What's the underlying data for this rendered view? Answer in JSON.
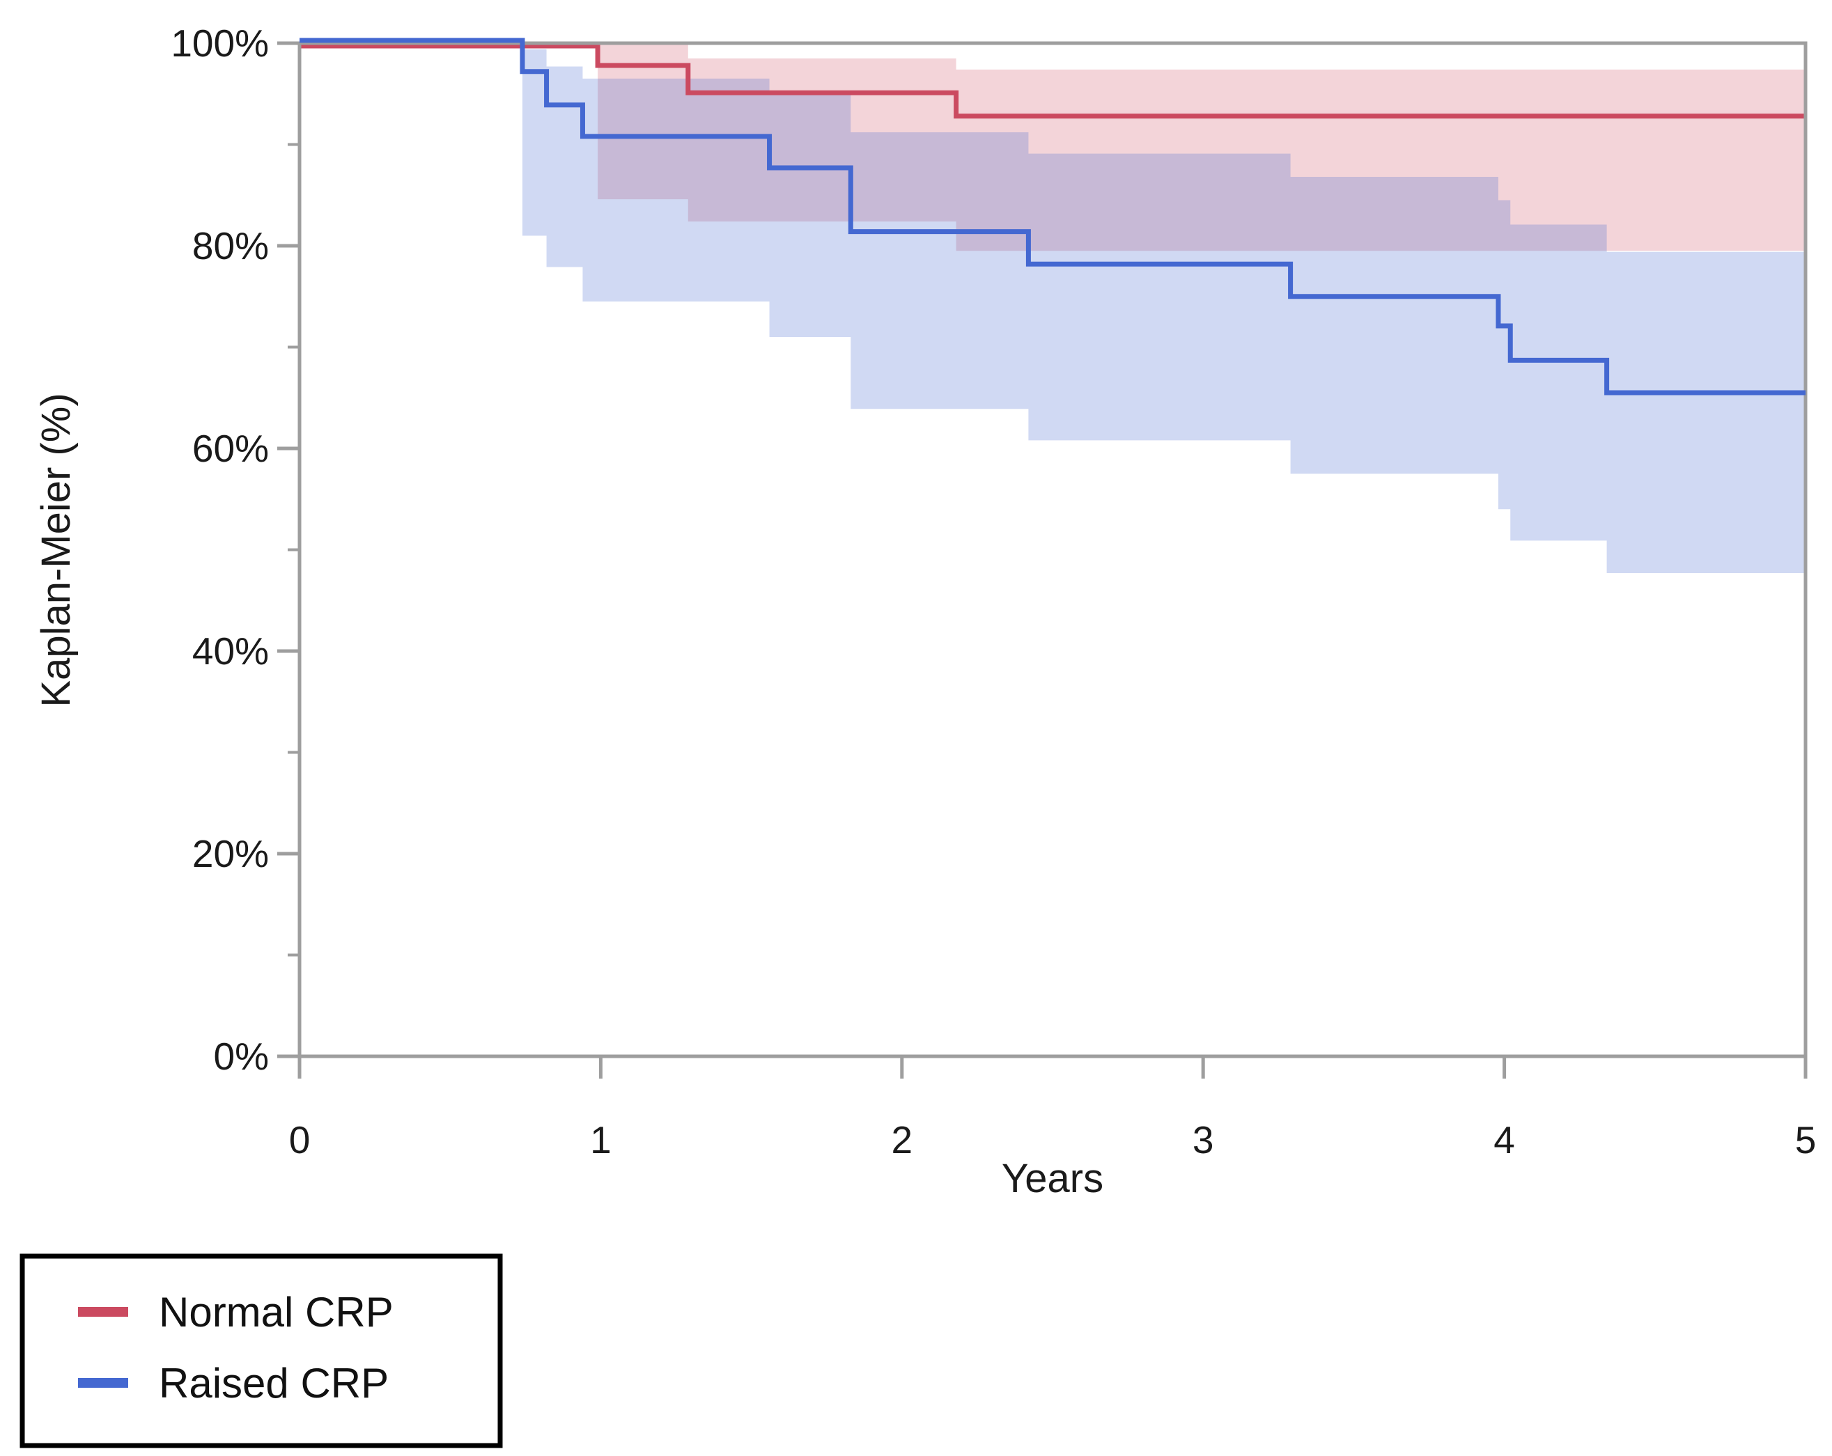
{
  "chart_data": {
    "type": "line",
    "subtype": "kaplan-meier-step-with-ci-bands",
    "title": "",
    "xlabel": "Years",
    "ylabel": "Kaplan-Meier (%)",
    "xlim": [
      0,
      5
    ],
    "ylim": [
      0,
      100
    ],
    "grid": false,
    "frame_color": "#9E9E9E",
    "text_color": "#1a1a1a",
    "legend_position": "bottom-left-outside",
    "x_ticks": [
      {
        "label": "0",
        "value": 0
      },
      {
        "label": "1",
        "value": 1
      },
      {
        "label": "2",
        "value": 2
      },
      {
        "label": "3",
        "value": 3
      },
      {
        "label": "4",
        "value": 4
      },
      {
        "label": "5",
        "value": 5
      }
    ],
    "y_major_ticks": [
      {
        "label": "100%",
        "value": 100
      },
      {
        "label": "80%",
        "value": 80
      },
      {
        "label": "60%",
        "value": 60
      },
      {
        "label": "40%",
        "value": 40
      },
      {
        "label": "20%",
        "value": 20
      },
      {
        "label": "0%",
        "value": 0
      }
    ],
    "y_minor_tick_values": [
      90,
      70,
      50,
      30,
      10
    ],
    "series": [
      {
        "name": "Normal CRP",
        "color": "#CB4A60",
        "band_opacity": 0.24,
        "survival_steps_pct": [
          [
            0,
            100
          ],
          [
            0.99,
            97.8
          ],
          [
            1.29,
            95.1
          ],
          [
            2.18,
            92.8
          ],
          [
            5,
            92.8
          ]
        ],
        "ci_upper_pct": [
          [
            0.99,
            99.9
          ],
          [
            1.29,
            98.5
          ],
          [
            2.18,
            97.4
          ],
          [
            5,
            97.4
          ]
        ],
        "ci_lower_pct": [
          [
            0.99,
            84.6
          ],
          [
            1.29,
            82.4
          ],
          [
            2.18,
            79.5
          ],
          [
            5,
            79.5
          ]
        ]
      },
      {
        "name": "Raised CRP",
        "color": "#4468D1",
        "band_opacity": 0.25,
        "survival_steps_pct": [
          [
            0,
            100
          ],
          [
            0.74,
            97.2
          ],
          [
            0.82,
            93.9
          ],
          [
            0.94,
            90.8
          ],
          [
            1.56,
            87.7
          ],
          [
            1.83,
            81.4
          ],
          [
            2.42,
            78.2
          ],
          [
            3.29,
            75.0
          ],
          [
            3.98,
            72.1
          ],
          [
            4.02,
            68.7
          ],
          [
            4.34,
            65.5
          ],
          [
            5,
            65.5
          ]
        ],
        "ci_upper_pct": [
          [
            0.74,
            99.4
          ],
          [
            0.82,
            97.7
          ],
          [
            0.94,
            96.5
          ],
          [
            1.56,
            95.0
          ],
          [
            1.83,
            91.2
          ],
          [
            2.42,
            89.1
          ],
          [
            3.29,
            86.8
          ],
          [
            3.98,
            84.5
          ],
          [
            4.02,
            82.1
          ],
          [
            4.34,
            79.4
          ],
          [
            5,
            79.4
          ]
        ],
        "ci_lower_pct": [
          [
            0.74,
            81.0
          ],
          [
            0.82,
            77.9
          ],
          [
            0.94,
            74.5
          ],
          [
            1.56,
            71.0
          ],
          [
            1.83,
            63.9
          ],
          [
            2.42,
            60.8
          ],
          [
            3.29,
            57.5
          ],
          [
            3.98,
            54.0
          ],
          [
            4.02,
            50.9
          ],
          [
            4.34,
            47.7
          ],
          [
            5,
            47.7
          ]
        ]
      }
    ]
  },
  "legend": {
    "border_color": "#000000",
    "entries": [
      "Normal CRP",
      "Raised CRP"
    ]
  }
}
